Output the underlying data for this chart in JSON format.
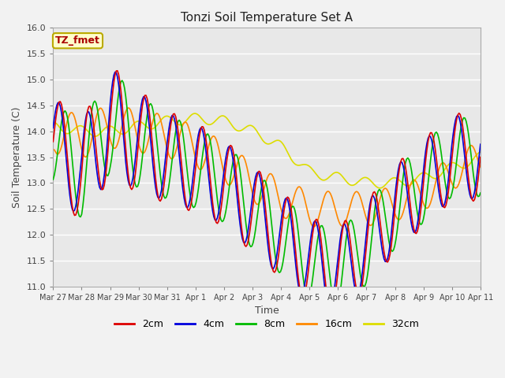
{
  "title": "Tonzi Soil Temperature Set A",
  "xlabel": "Time",
  "ylabel": "Soil Temperature (C)",
  "ylim": [
    11.0,
    16.0
  ],
  "yticks": [
    11.0,
    11.5,
    12.0,
    12.5,
    13.0,
    13.5,
    14.0,
    14.5,
    15.0,
    15.5,
    16.0
  ],
  "xtick_labels": [
    "Mar 27",
    "Mar 28",
    "Mar 29",
    "Mar 30",
    "Mar 31",
    "Apr 1",
    "Apr 2",
    "Apr 3",
    "Apr 4",
    "Apr 5",
    "Apr 6",
    "Apr 7",
    "Apr 8",
    "Apr 9",
    "Apr 10",
    "Apr 11"
  ],
  "series_colors": {
    "2cm": "#dd0000",
    "4cm": "#0000dd",
    "8cm": "#00bb00",
    "16cm": "#ff8800",
    "32cm": "#dddd00"
  },
  "series_lw": 1.2,
  "legend_label": "TZ_fmet",
  "legend_box_color": "#ffffcc",
  "legend_box_edge": "#bbaa00",
  "plot_bg_color": "#e8e8e8",
  "fig_bg_color": "#f2f2f2"
}
